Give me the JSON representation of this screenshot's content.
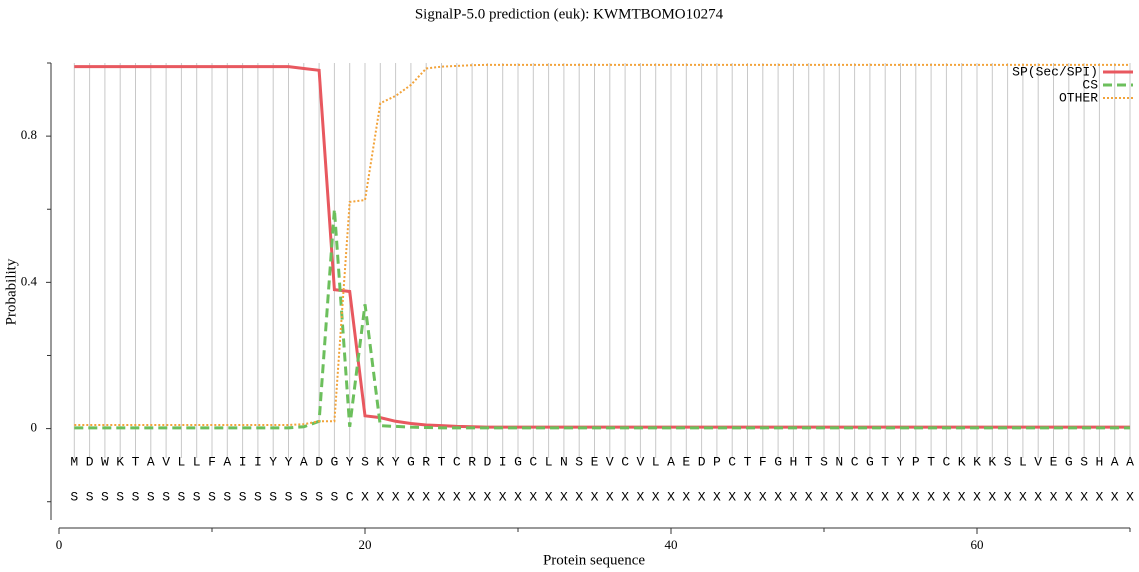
{
  "chart_data": {
    "type": "line",
    "title": "SignalP-5.0 prediction (euk):  KWMTBOMO10274",
    "x_label": "Protein sequence",
    "y_label": "Probability",
    "x": [
      1,
      2,
      3,
      4,
      5,
      6,
      7,
      8,
      9,
      10,
      11,
      12,
      13,
      14,
      15,
      16,
      17,
      18,
      19,
      20,
      21,
      22,
      23,
      24,
      25,
      26,
      27,
      28,
      29,
      30,
      31,
      32,
      33,
      34,
      35,
      36,
      37,
      38,
      39,
      40,
      41,
      42,
      43,
      44,
      45,
      46,
      47,
      48,
      49,
      50,
      51,
      52,
      53,
      54,
      55,
      56,
      57,
      58,
      59,
      60,
      61,
      62,
      63,
      64,
      65,
      66,
      67,
      68,
      69,
      70
    ],
    "sequence": [
      "M",
      "D",
      "W",
      "K",
      "T",
      "A",
      "V",
      "L",
      "L",
      "F",
      "A",
      "I",
      "I",
      "Y",
      "Y",
      "A",
      "D",
      "G",
      "Y",
      "S",
      "K",
      "Y",
      "G",
      "R",
      "T",
      "C",
      "R",
      "D",
      "I",
      "G",
      "C",
      "L",
      "N",
      "S",
      "E",
      "V",
      "C",
      "V",
      "L",
      "A",
      "E",
      "D",
      "P",
      "C",
      "T",
      "F",
      "G",
      "H",
      "T",
      "S",
      "N",
      "C",
      "G",
      "T",
      "Y",
      "P",
      "T",
      "C",
      "K",
      "K",
      "K",
      "S",
      "L",
      "V",
      "E",
      "G",
      "S",
      "H",
      "A",
      "A"
    ],
    "annotation": [
      "S",
      "S",
      "S",
      "S",
      "S",
      "S",
      "S",
      "S",
      "S",
      "S",
      "S",
      "S",
      "S",
      "S",
      "S",
      "S",
      "S",
      "S",
      "C",
      "X",
      "X",
      "X",
      "X",
      "X",
      "X",
      "X",
      "X",
      "X",
      "X",
      "X",
      "X",
      "X",
      "X",
      "X",
      "X",
      "X",
      "X",
      "X",
      "X",
      "X",
      "X",
      "X",
      "X",
      "X",
      "X",
      "X",
      "X",
      "X",
      "X",
      "X",
      "X",
      "X",
      "X",
      "X",
      "X",
      "X",
      "X",
      "X",
      "X",
      "X",
      "X",
      "X",
      "X",
      "X",
      "X",
      "X",
      "X",
      "X",
      "X",
      "X"
    ],
    "series": [
      {
        "name": "SP(Sec/SPI)",
        "color": "#e8585f",
        "dash": "solid",
        "values": [
          0.99,
          0.99,
          0.99,
          0.99,
          0.99,
          0.99,
          0.99,
          0.99,
          0.99,
          0.99,
          0.99,
          0.99,
          0.99,
          0.99,
          0.99,
          0.985,
          0.98,
          0.38,
          0.375,
          0.035,
          0.03,
          0.02,
          0.014,
          0.01,
          0.008,
          0.006,
          0.005,
          0.004,
          0.004,
          0.004,
          0.004,
          0.004,
          0.004,
          0.004,
          0.004,
          0.004,
          0.004,
          0.004,
          0.004,
          0.004,
          0.004,
          0.004,
          0.004,
          0.004,
          0.004,
          0.004,
          0.004,
          0.004,
          0.004,
          0.004,
          0.004,
          0.004,
          0.004,
          0.004,
          0.004,
          0.004,
          0.004,
          0.004,
          0.004,
          0.004,
          0.004,
          0.004,
          0.004,
          0.004,
          0.004,
          0.004,
          0.004,
          0.004,
          0.004,
          0.004
        ]
      },
      {
        "name": "CS",
        "color": "#6cbf5c",
        "dash": "dashed",
        "values": [
          0.002,
          0.002,
          0.002,
          0.002,
          0.002,
          0.002,
          0.002,
          0.002,
          0.002,
          0.002,
          0.002,
          0.002,
          0.002,
          0.002,
          0.002,
          0.005,
          0.02,
          0.6,
          0.005,
          0.34,
          0.008,
          0.006,
          0.004,
          0.003,
          0.002,
          0.002,
          0.002,
          0.002,
          0.002,
          0.002,
          0.002,
          0.002,
          0.002,
          0.002,
          0.002,
          0.002,
          0.002,
          0.002,
          0.002,
          0.002,
          0.002,
          0.002,
          0.002,
          0.002,
          0.002,
          0.002,
          0.002,
          0.002,
          0.002,
          0.002,
          0.002,
          0.002,
          0.002,
          0.002,
          0.002,
          0.002,
          0.002,
          0.002,
          0.002,
          0.002,
          0.002,
          0.002,
          0.002,
          0.002,
          0.002,
          0.002,
          0.002,
          0.002,
          0.002,
          0.002
        ]
      },
      {
        "name": "OTHER",
        "color": "#f2a33a",
        "dash": "dotted",
        "values": [
          0.01,
          0.01,
          0.01,
          0.01,
          0.01,
          0.01,
          0.01,
          0.01,
          0.01,
          0.01,
          0.01,
          0.01,
          0.01,
          0.01,
          0.01,
          0.012,
          0.02,
          0.02,
          0.62,
          0.625,
          0.89,
          0.91,
          0.94,
          0.985,
          0.99,
          0.992,
          0.994,
          0.995,
          0.995,
          0.995,
          0.995,
          0.995,
          0.995,
          0.995,
          0.995,
          0.995,
          0.995,
          0.995,
          0.995,
          0.995,
          0.995,
          0.995,
          0.995,
          0.995,
          0.995,
          0.995,
          0.995,
          0.995,
          0.995,
          0.995,
          0.995,
          0.995,
          0.995,
          0.995,
          0.995,
          0.995,
          0.995,
          0.995,
          0.995,
          0.995,
          0.995,
          0.995,
          0.995,
          0.995,
          0.995,
          0.995,
          0.995,
          0.995,
          0.995,
          0.995
        ]
      }
    ],
    "xlim": [
      0,
      70
    ],
    "xticks": [
      0,
      20,
      40,
      60
    ],
    "xminorticks": [
      10,
      30,
      50,
      70
    ],
    "ylim": [
      -0.25,
      1
    ],
    "yticks": [
      0,
      0.4,
      0.8
    ],
    "yminorticks": [
      -0.2,
      0.2,
      0.6,
      1
    ],
    "grid": true,
    "legend": "top-right"
  }
}
